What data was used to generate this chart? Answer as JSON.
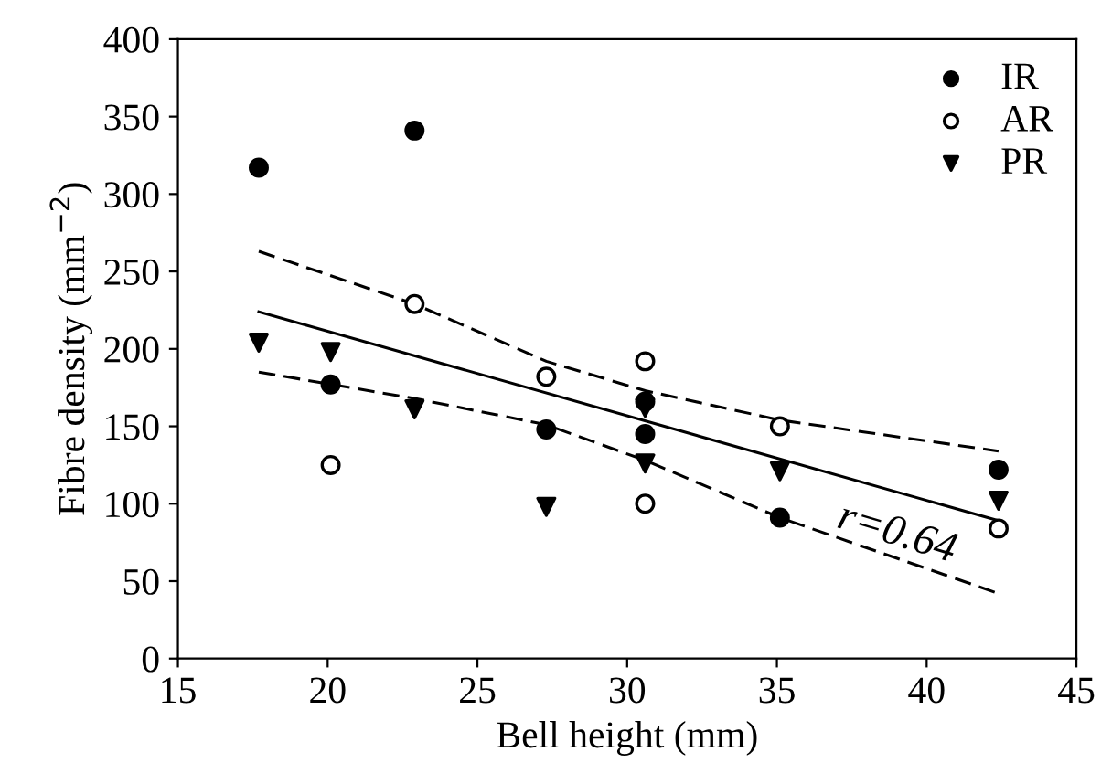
{
  "chart_data": {
    "type": "scatter",
    "xlabel": "Bell height (mm)",
    "ylabel": "Fibre density (mm$^{−2}$)",
    "xlim": [
      15,
      45
    ],
    "xticks": [
      15,
      20,
      25,
      30,
      35,
      40,
      45
    ],
    "ylim": [
      0,
      400
    ],
    "yticks": [
      0,
      50,
      100,
      150,
      200,
      250,
      300,
      350,
      400
    ],
    "grid": false,
    "legend": "top right",
    "series": [
      {
        "name": "IR",
        "color": "#000000",
        "marker": "circle",
        "x": [
          17.7,
          22.9,
          20.1,
          27.3,
          30.6,
          30.6,
          35.1,
          42.4
        ],
        "values": [
          317,
          341,
          177,
          148,
          166,
          145,
          91,
          122
        ]
      },
      {
        "name": "AR",
        "color": "#000000",
        "marker": "open circle",
        "x": [
          22.9,
          20.1,
          27.3,
          30.6,
          30.6,
          35.1,
          42.4
        ],
        "values": [
          229,
          125,
          182,
          192,
          100,
          150,
          84
        ]
      },
      {
        "name": "PR",
        "color": "#000000",
        "marker": "triangle",
        "x": [
          17.7,
          20.1,
          22.9,
          27.3,
          30.6,
          30.6,
          35.1,
          42.4
        ],
        "values": [
          204,
          198,
          161,
          98,
          162,
          126,
          121,
          102
        ]
      },
      {
        "type": "line",
        "color": "#000000",
        "line_style": "solid",
        "marker": "none",
        "x": [
          17.7,
          42.4
        ],
        "values": [
          224,
          89
        ]
      },
      {
        "type": "line",
        "color": "#000000",
        "line_style": "dashed",
        "marker": "none",
        "x": [
          17.7,
          22.9,
          27.3,
          30.6,
          35.1,
          42.4
        ],
        "values": [
          263,
          229,
          192,
          173,
          154,
          134
        ]
      },
      {
        "type": "line",
        "color": "#000000",
        "line_style": "dashed",
        "marker": "none",
        "x": [
          17.7,
          22.9,
          27.3,
          30.6,
          35.1,
          42.4
        ],
        "values": [
          185,
          168,
          151,
          128,
          91,
          42
        ]
      }
    ],
    "annotations": [
      "r=0.64"
    ]
  }
}
